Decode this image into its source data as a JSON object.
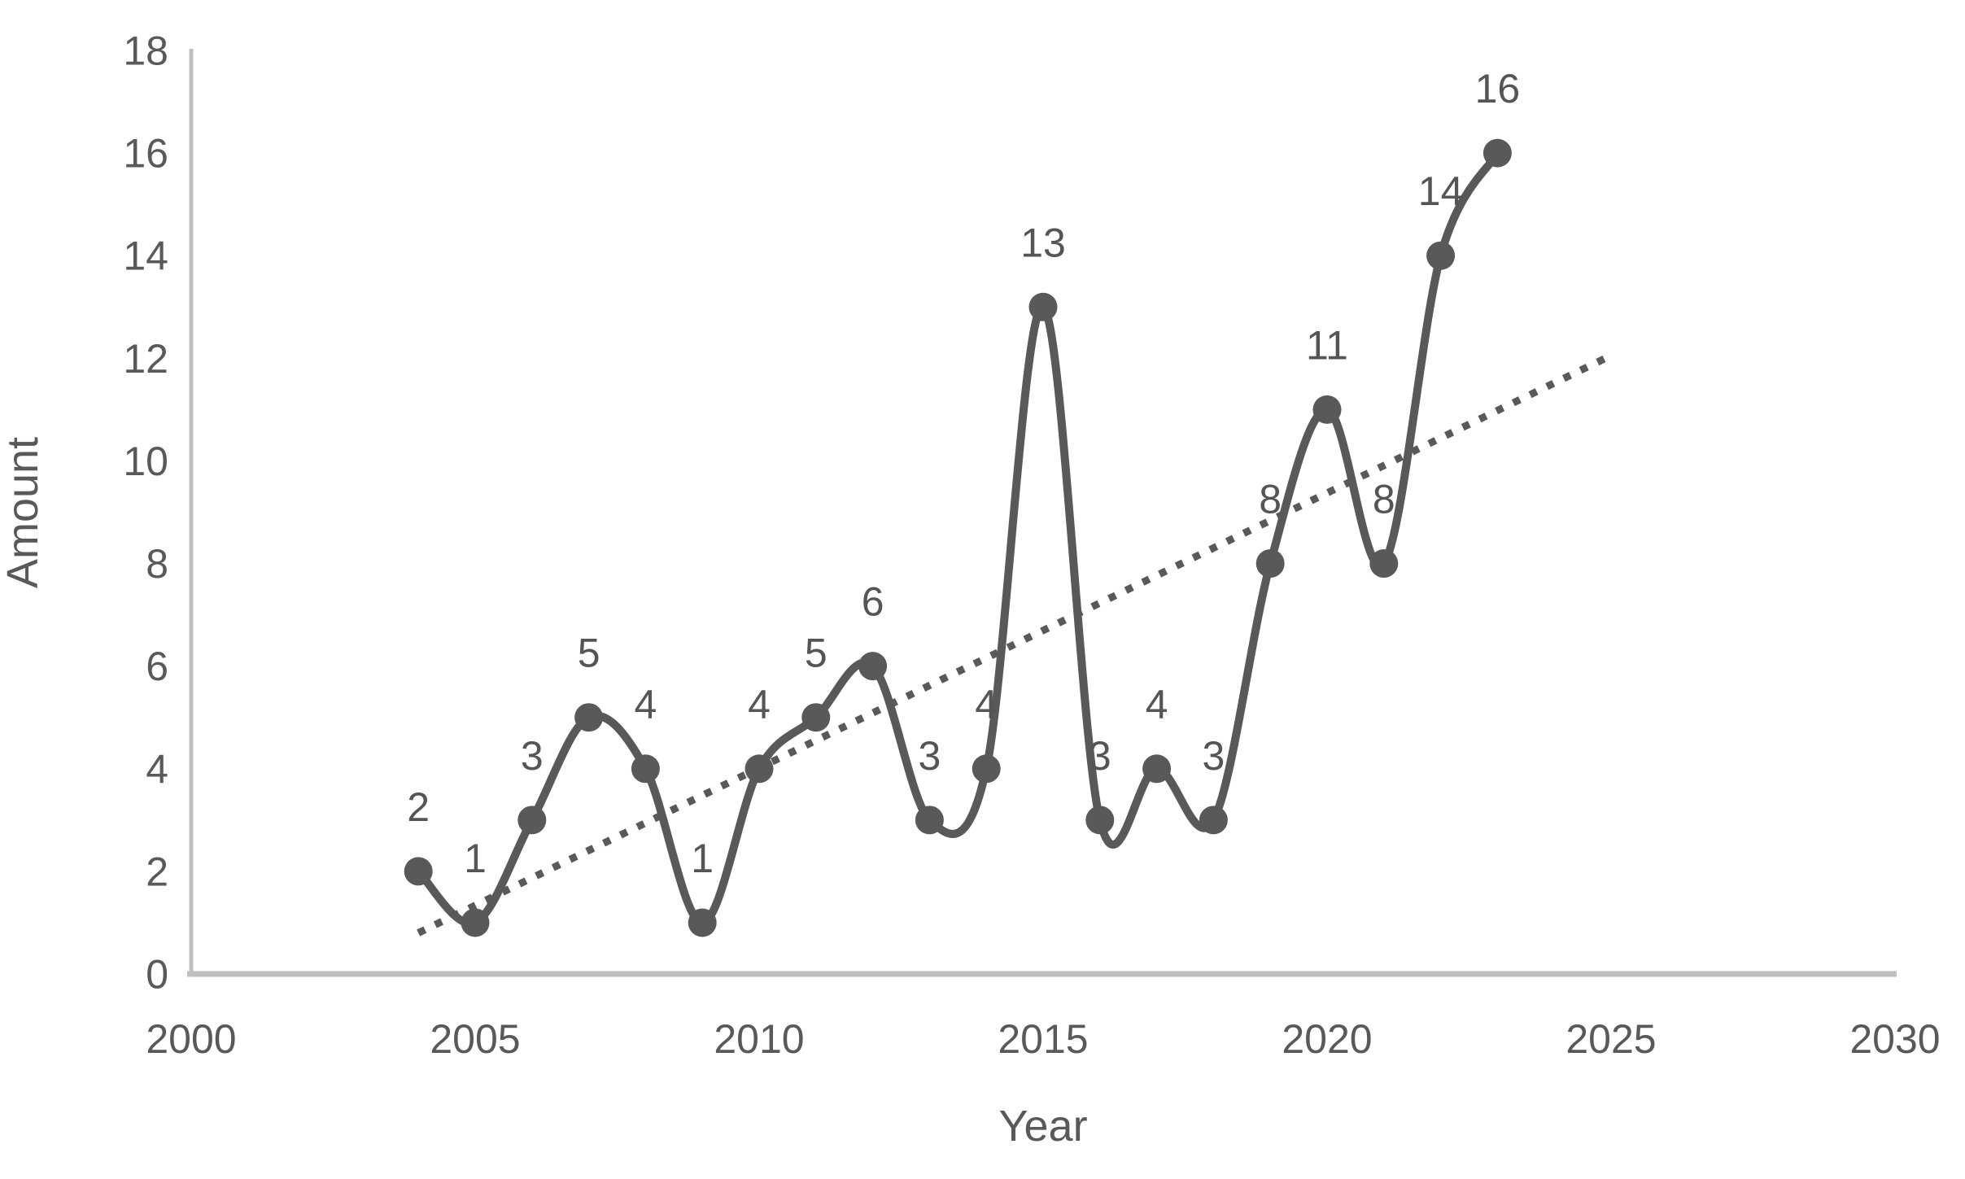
{
  "chart_data": {
    "type": "line",
    "title": "",
    "xlabel": "Year",
    "ylabel": "Amount",
    "x": [
      2004,
      2005,
      2006,
      2007,
      2008,
      2009,
      2010,
      2011,
      2012,
      2013,
      2014,
      2015,
      2016,
      2017,
      2018,
      2019,
      2020,
      2021,
      2022,
      2023
    ],
    "values": [
      2,
      1,
      3,
      5,
      4,
      1,
      4,
      5,
      6,
      3,
      4,
      13,
      3,
      4,
      3,
      8,
      11,
      8,
      14,
      16
    ],
    "data_labels": [
      "2",
      "1",
      "3",
      "5",
      "4",
      "1",
      "4",
      "5",
      "6",
      "3",
      "4",
      "13",
      "3",
      "4",
      "3",
      "8",
      "11",
      "8",
      "14",
      "16"
    ],
    "xlim": [
      2000,
      2030
    ],
    "ylim": [
      0,
      18
    ],
    "x_ticks": [
      "2000",
      "2005",
      "2010",
      "2015",
      "2020",
      "2025",
      "2030"
    ],
    "y_ticks": [
      "0",
      "2",
      "4",
      "6",
      "8",
      "10",
      "12",
      "14",
      "16",
      "18"
    ],
    "grid": false,
    "legend": "none",
    "line_smooth": true,
    "marker": "circle",
    "series_color": "#595959",
    "axis_line_color": "#bfbfbf",
    "text_color": "#595959",
    "trendline": {
      "style": "dotted",
      "color": "#595959",
      "x_start": 2004,
      "value_start": 0.8,
      "x_end": 2024.9,
      "value_end": 12.0
    }
  }
}
